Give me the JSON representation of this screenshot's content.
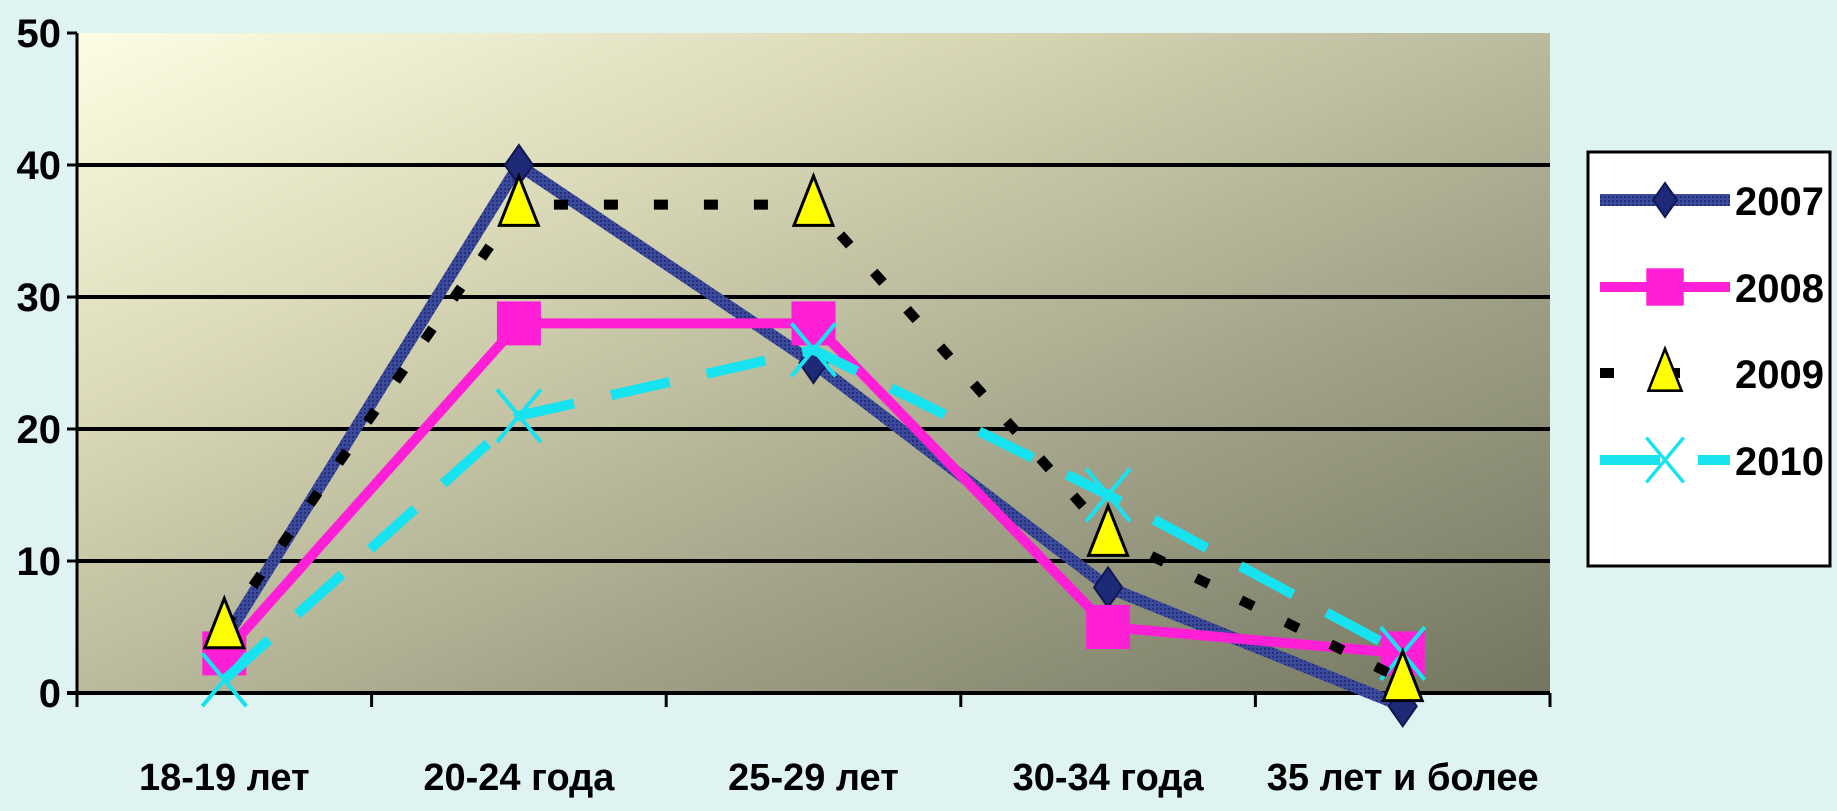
{
  "chart_data": {
    "type": "line",
    "categories": [
      "18-19 лет",
      "20-24 года",
      "25-29 лет",
      "30-34 года",
      "35 лет и более"
    ],
    "ylim": [
      0,
      50
    ],
    "yticks": [
      0,
      10,
      20,
      30,
      40,
      50
    ],
    "grid": true,
    "legend_position": "right",
    "series": [
      {
        "name": "2007",
        "values": [
          4,
          40,
          25,
          8,
          -1
        ],
        "color": "#2c3a8a",
        "marker": "diamond",
        "dash": "solid"
      },
      {
        "name": "2008",
        "values": [
          3,
          28,
          28,
          5,
          3
        ],
        "color": "#ff1fd6",
        "marker": "square",
        "dash": "solid"
      },
      {
        "name": "2009",
        "values": [
          5,
          37,
          37,
          12,
          1
        ],
        "color": "#000000",
        "marker": "triangle",
        "marker_fill": "#ffff00",
        "dash": "dotted"
      },
      {
        "name": "2010",
        "values": [
          1,
          21,
          26,
          15,
          3
        ],
        "color": "#17e3f0",
        "marker": "x",
        "dash": "dashed"
      }
    ]
  }
}
